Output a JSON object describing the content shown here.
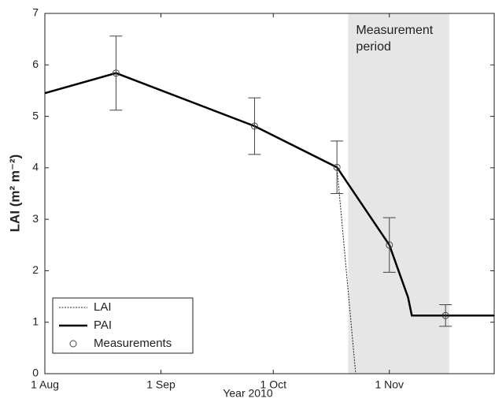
{
  "chart_data": {
    "type": "line",
    "xlabel": "Year 2010",
    "ylabel": "LAI (m² m⁻²)",
    "xlim": [
      213,
      333
    ],
    "ylim": [
      0,
      7
    ],
    "xticks": [
      {
        "value": 213,
        "label": "1 Aug"
      },
      {
        "value": 244,
        "label": "1 Sep"
      },
      {
        "value": 274,
        "label": "1 Oct"
      },
      {
        "value": 305,
        "label": "1 Nov"
      }
    ],
    "yticks": [
      0,
      1,
      2,
      3,
      4,
      5,
      6,
      7
    ],
    "shaded_span": {
      "x": [
        294,
        321
      ],
      "label_lines": [
        "Measurement",
        "period"
      ],
      "color": "#e6e6e6"
    },
    "legend": "lower left",
    "series": [
      {
        "name": "LAI",
        "style": "dotted",
        "color": "#222222",
        "x": [
          213,
          232,
          269,
          291,
          296,
          333
        ],
        "values": [
          5.45,
          5.84,
          4.81,
          4.01,
          0,
          0
        ]
      },
      {
        "name": "PAI",
        "style": "solid",
        "color": "#000000",
        "x": [
          213,
          232,
          269,
          291,
          305,
          310,
          311,
          333
        ],
        "values": [
          5.45,
          5.84,
          4.81,
          4.01,
          2.5,
          1.48,
          1.13,
          1.13
        ]
      },
      {
        "name": "Measurements",
        "style": "markers",
        "color": "#444444",
        "x": [
          232,
          269,
          291,
          305,
          320
        ],
        "values": [
          5.84,
          4.81,
          4.01,
          2.5,
          1.13
        ],
        "error": [
          0.72,
          0.55,
          0.51,
          0.53,
          0.21
        ]
      }
    ]
  }
}
